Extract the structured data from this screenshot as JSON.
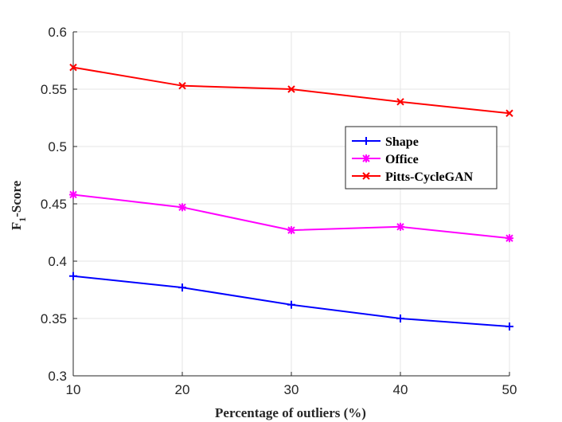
{
  "chart_data": {
    "type": "line",
    "title": "",
    "xlabel": "Percentage of outliers (%)",
    "ylabel_main": "F",
    "ylabel_sub": "1",
    "ylabel_rest": "-Score",
    "x": [
      10,
      20,
      30,
      40,
      50
    ],
    "xlim": [
      10,
      50
    ],
    "ylim": [
      0.3,
      0.6
    ],
    "xticks": [
      10,
      20,
      30,
      40,
      50
    ],
    "xtick_labels": [
      "10",
      "20",
      "30",
      "40",
      "50"
    ],
    "yticks": [
      0.3,
      0.35,
      0.4,
      0.45,
      0.5,
      0.55,
      0.6
    ],
    "ytick_labels": [
      "0.3",
      "0.35",
      "0.4",
      "0.45",
      "0.5",
      "0.55",
      "0.6"
    ],
    "grid": true,
    "legend_position": "center-right",
    "series": [
      {
        "name": "Shape",
        "values": [
          0.387,
          0.377,
          0.362,
          0.35,
          0.343
        ],
        "color": "#0000ff",
        "marker": "plus"
      },
      {
        "name": "Office",
        "values": [
          0.458,
          0.447,
          0.427,
          0.43,
          0.42
        ],
        "color": "#ff00ff",
        "marker": "asterisk"
      },
      {
        "name": "Pitts-CycleGAN",
        "values": [
          0.569,
          0.553,
          0.55,
          0.539,
          0.529
        ],
        "color": "#ff0000",
        "marker": "x"
      }
    ]
  }
}
